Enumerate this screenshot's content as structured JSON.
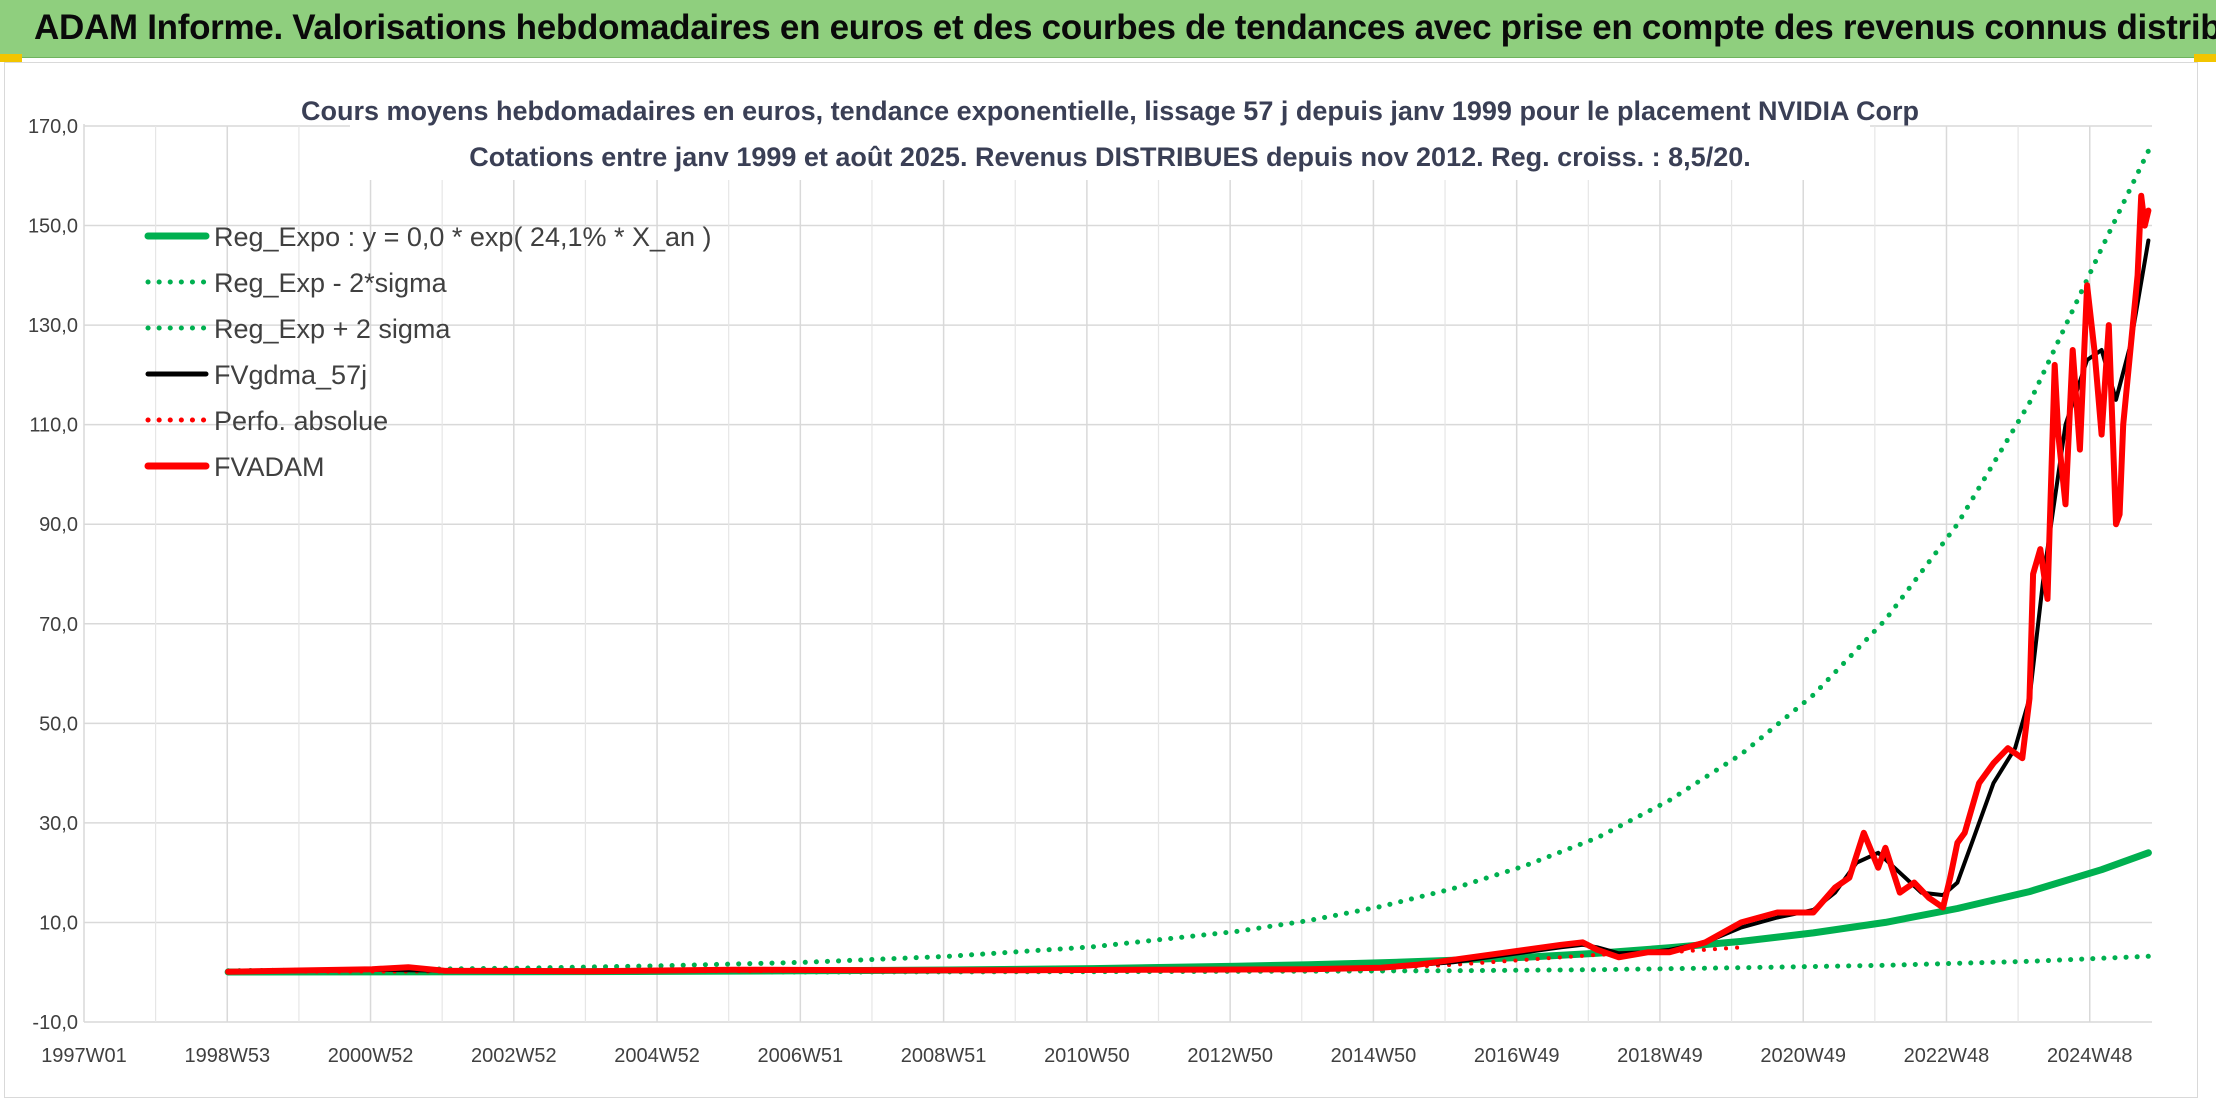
{
  "banner": {
    "title": "ADAM Informe. Valorisations hebdomadaires en euros et des courbes de tendances avec prise en compte des revenus connus distribués"
  },
  "colors": {
    "banner_bg": "#8fcf7e",
    "accent_corner": "#f2c500",
    "reg_expo": "#00b050",
    "perfo": "#ff0000",
    "fvadam": "#ff0000",
    "fvgdma": "#000000"
  },
  "chart_data": {
    "type": "line",
    "title": "Cours moyens hebdomadaires en euros, tendance exponentielle, lissage 57 j depuis janv 1999 pour le placement NVIDIA Corp",
    "subtitle": "Cotations entre janv 1999 et août 2025. Revenus DISTRIBUES depuis nov 2012. Reg. croiss. : 8,5/20.",
    "xlabel": "",
    "ylabel": "",
    "ylim": [
      -10,
      170
    ],
    "yticks": [
      "170,0",
      "150,0",
      "130,0",
      "110,0",
      "90,0",
      "70,0",
      "50,0",
      "30,0",
      "10,0",
      "-10,0"
    ],
    "xticks": [
      "1997W01",
      "1998W53",
      "2000W52",
      "2002W52",
      "2004W52",
      "2006W51",
      "2008W51",
      "2010W50",
      "2012W50",
      "2014W50",
      "2016W49",
      "2018W49",
      "2020W49",
      "2022W48",
      "2024W48"
    ],
    "xlim": [
      1997.0,
      2025.7
    ],
    "grid": true,
    "legend_position": "top-left",
    "series": [
      {
        "name": "Reg_Expo : y = 0,0 * exp( 24,1% *  X_an )",
        "color": "#00b050",
        "style": "solid",
        "x": [
          1999.0,
          2001,
          2003,
          2005,
          2007,
          2009,
          2011,
          2013,
          2014,
          2015,
          2016,
          2017,
          2018,
          2019,
          2020,
          2021,
          2022,
          2023,
          2024,
          2025,
          2025.65
        ],
        "y": [
          0.04,
          0.07,
          0.1,
          0.17,
          0.28,
          0.45,
          0.72,
          1.2,
          1.5,
          1.9,
          2.4,
          3.0,
          3.8,
          4.9,
          6.2,
          7.9,
          10.0,
          12.8,
          16.2,
          20.6,
          24.0
        ]
      },
      {
        "name": "Reg_Exp - 2*sigma",
        "color": "#00b050",
        "style": "dotted",
        "x": [
          1999.0,
          2003,
          2007,
          2011,
          2014,
          2016,
          2018,
          2020,
          2022,
          2024,
          2025.65
        ],
        "y": [
          0.01,
          0.02,
          0.04,
          0.1,
          0.2,
          0.3,
          0.5,
          0.9,
          1.4,
          2.2,
          3.2
        ]
      },
      {
        "name": "Reg_Exp + 2 sigma",
        "color": "#00b050",
        "style": "dotted",
        "x": [
          1999.0,
          2001,
          2003,
          2005,
          2007,
          2009,
          2011,
          2013,
          2014,
          2015,
          2016,
          2017,
          2018,
          2019,
          2020,
          2021,
          2022,
          2023,
          2024,
          2025,
          2025.65
        ],
        "y": [
          0.3,
          0.5,
          0.8,
          1.3,
          2.0,
          3.2,
          5.1,
          8.2,
          10.4,
          13.2,
          16.8,
          21.4,
          27.0,
          34.5,
          43.8,
          55.7,
          70.8,
          90.0,
          114.4,
          145.4,
          165.0
        ]
      },
      {
        "name": "FVgdma_57j",
        "color": "#000000",
        "style": "solid",
        "x": [
          1999.0,
          2001,
          2002,
          2004,
          2006,
          2008,
          2010,
          2012,
          2014,
          2015,
          2016,
          2016.5,
          2017,
          2017.5,
          2017.8,
          2018.0,
          2018.3,
          2018.7,
          2019.0,
          2019.5,
          2020.0,
          2020.5,
          2021.0,
          2021.3,
          2021.6,
          2021.9,
          2022.2,
          2022.5,
          2022.8,
          2023.0,
          2023.2,
          2023.5,
          2023.8,
          2024.0,
          2024.2,
          2024.5,
          2024.8,
          2025.0,
          2025.2,
          2025.4,
          2025.65
        ],
        "y": [
          0.1,
          0.5,
          0.3,
          0.2,
          0.4,
          0.4,
          0.5,
          0.5,
          0.6,
          0.9,
          2.0,
          3.0,
          4.0,
          5.0,
          5.5,
          5.0,
          3.8,
          4.0,
          4.5,
          6.0,
          9.0,
          11.0,
          12.5,
          16.0,
          22.0,
          24.0,
          20.0,
          16.0,
          15.5,
          18.0,
          26.0,
          38.0,
          45.0,
          55.0,
          80.0,
          110.0,
          123.0,
          125.0,
          115.0,
          126.0,
          147.0
        ]
      },
      {
        "name": "Perfo. absolue",
        "color": "#ff0000",
        "style": "dotted",
        "x": [
          1999.0,
          2005,
          2010,
          2014,
          2015,
          2016,
          2017,
          2018,
          2019,
          2020
        ],
        "y": [
          0.1,
          0.2,
          0.3,
          0.5,
          0.8,
          1.5,
          2.5,
          3.5,
          4.0,
          5.0
        ]
      },
      {
        "name": "FVADAM",
        "color": "#ff0000",
        "style": "solid",
        "x": [
          1999.0,
          2001,
          2001.5,
          2002,
          2004,
          2006,
          2008,
          2010,
          2012,
          2014,
          2015,
          2015.5,
          2016,
          2016.5,
          2017,
          2017.5,
          2017.8,
          2018.0,
          2018.3,
          2018.7,
          2019.0,
          2019.5,
          2020.0,
          2020.5,
          2021.0,
          2021.3,
          2021.5,
          2021.7,
          2021.9,
          2022.0,
          2022.2,
          2022.4,
          2022.6,
          2022.8,
          2022.9,
          2023.0,
          2023.1,
          2023.3,
          2023.5,
          2023.7,
          2023.9,
          2024.0,
          2024.05,
          2024.15,
          2024.25,
          2024.35,
          2024.4,
          2024.5,
          2024.6,
          2024.7,
          2024.8,
          2024.9,
          2025.0,
          2025.1,
          2025.2,
          2025.25,
          2025.3,
          2025.4,
          2025.5,
          2025.55,
          2025.6,
          2025.65
        ],
        "y": [
          0.1,
          0.6,
          1.0,
          0.3,
          0.2,
          0.5,
          0.4,
          0.4,
          0.5,
          0.6,
          0.9,
          1.5,
          2.5,
          3.5,
          4.5,
          5.5,
          6.0,
          4.5,
          3.0,
          4.0,
          4.0,
          6.0,
          10.0,
          12.0,
          12.0,
          17.0,
          19.0,
          28.0,
          21.0,
          25.0,
          16.0,
          18.0,
          15.0,
          13.0,
          19.0,
          26.0,
          28.0,
          38.0,
          42.0,
          45.0,
          43.0,
          55.0,
          80.0,
          85.0,
          75.0,
          122.0,
          108.0,
          94.0,
          125.0,
          105.0,
          138.0,
          125.0,
          108.0,
          130.0,
          90.0,
          92.0,
          110.0,
          125.0,
          140.0,
          156.0,
          150.0,
          153.0
        ]
      }
    ]
  }
}
